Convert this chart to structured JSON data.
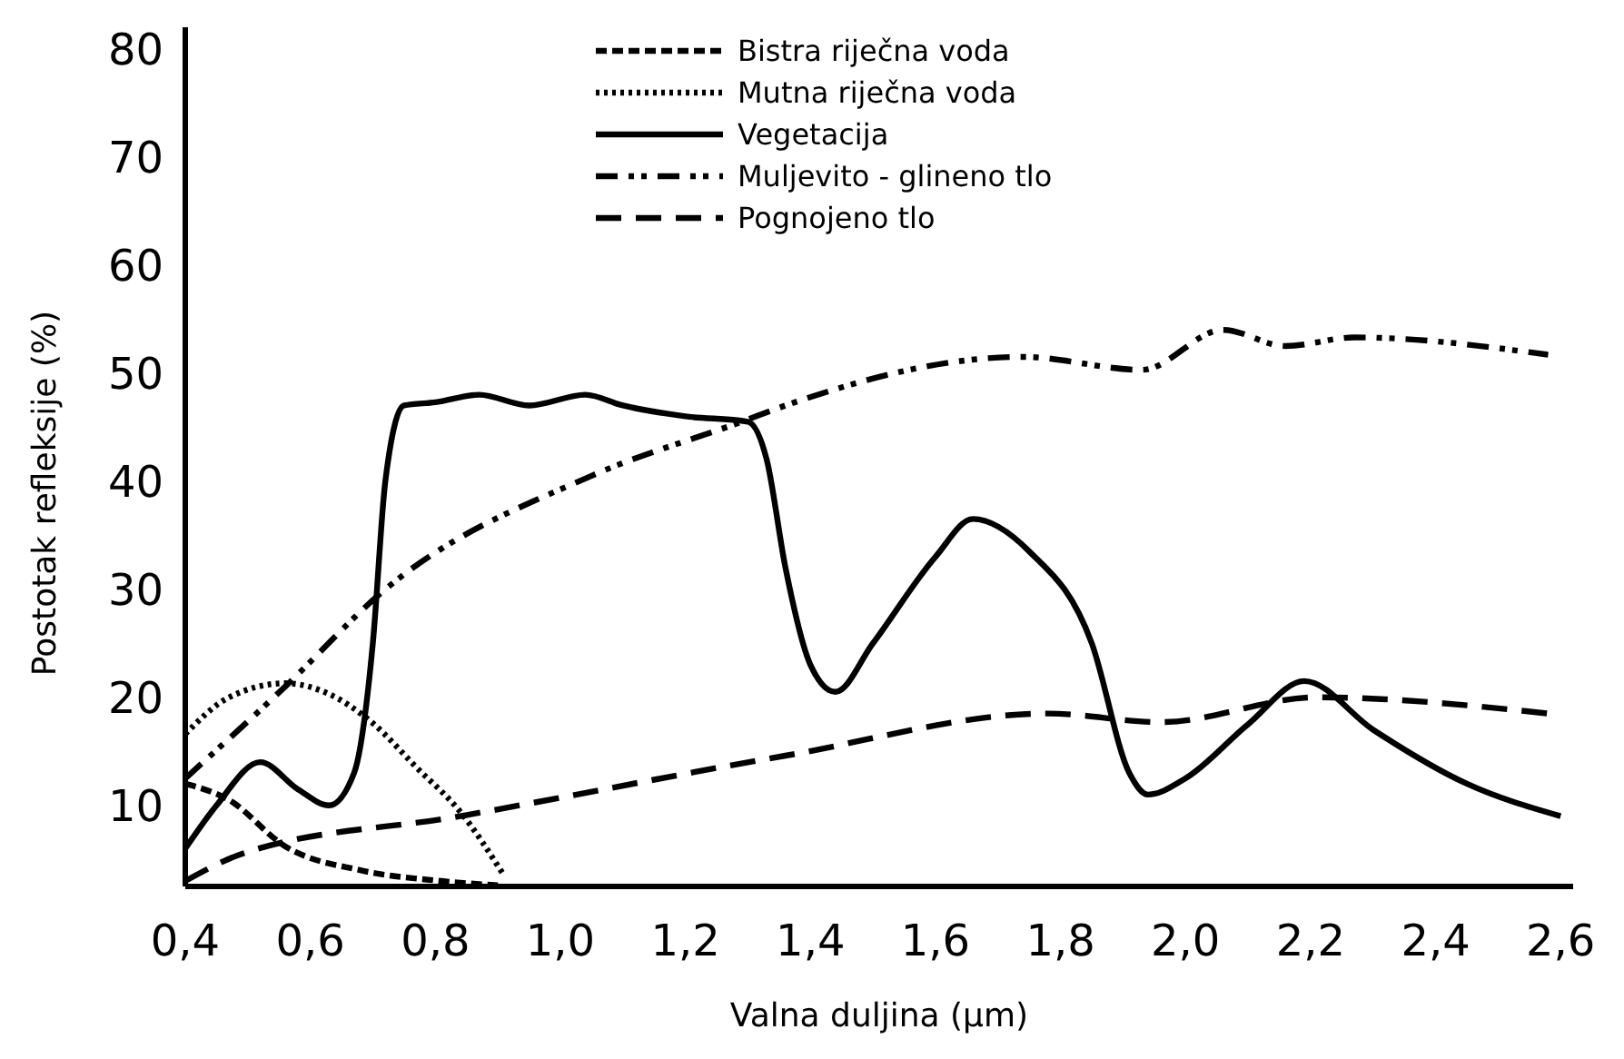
{
  "chart_data": {
    "type": "line",
    "xlabel": "Valna duljina (µm)",
    "ylabel": "Postotak refleksije (%)",
    "xlim": [
      0.4,
      2.62
    ],
    "ylim": [
      2.5,
      82
    ],
    "xticks": [
      {
        "value": 0.4,
        "label": "0,4"
      },
      {
        "value": 0.6,
        "label": "0,6"
      },
      {
        "value": 0.8,
        "label": "0,8"
      },
      {
        "value": 1.0,
        "label": "1,0"
      },
      {
        "value": 1.2,
        "label": "1,2"
      },
      {
        "value": 1.4,
        "label": "1,4"
      },
      {
        "value": 1.6,
        "label": "1,6"
      },
      {
        "value": 1.8,
        "label": "1,8"
      },
      {
        "value": 2.0,
        "label": "2,0"
      },
      {
        "value": 2.2,
        "label": "2,2"
      },
      {
        "value": 2.4,
        "label": "2,4"
      },
      {
        "value": 2.6,
        "label": "2,6"
      }
    ],
    "yticks": [
      10,
      20,
      30,
      40,
      50,
      60,
      70,
      80
    ],
    "grid": false,
    "legend": "top",
    "marker": "none",
    "series": [
      {
        "name": "Bistra riječna voda",
        "color": "#000000",
        "line_style": "dashed",
        "x": [
          0.4,
          0.47,
          0.56,
          0.68,
          0.81,
          0.9
        ],
        "values": [
          12,
          10.5,
          6.2,
          4,
          3,
          2.6
        ]
      },
      {
        "name": "Mutna riječna voda",
        "color": "#000000",
        "line_style": "dotted",
        "x": [
          0.4,
          0.47,
          0.56,
          0.63,
          0.7,
          0.77,
          0.84,
          0.91
        ],
        "values": [
          16.6,
          20,
          21.3,
          20.3,
          17.6,
          13.5,
          9.4,
          3.5
        ]
      },
      {
        "name": "Vegetacija",
        "color": "#000000",
        "line_style": "solid",
        "x": [
          0.4,
          0.45,
          0.52,
          0.58,
          0.63,
          0.67,
          0.7,
          0.72,
          0.75,
          0.8,
          0.87,
          0.95,
          1.04,
          1.1,
          1.2,
          1.3,
          1.33,
          1.36,
          1.4,
          1.44,
          1.5,
          1.6,
          1.66,
          1.75,
          1.85,
          1.91,
          1.94,
          2.0,
          2.1,
          2.19,
          2.3,
          2.45,
          2.6
        ],
        "values": [
          6,
          10,
          14,
          11.5,
          10,
          13,
          25,
          40,
          47,
          47.3,
          48,
          47,
          48,
          47,
          46,
          45.5,
          42,
          32,
          23,
          20.5,
          25,
          33,
          36.5,
          33.5,
          25,
          13,
          11,
          12.5,
          17.5,
          21.5,
          17,
          12,
          9
        ]
      },
      {
        "name": "Muljevito - glineno tlo",
        "color": "#000000",
        "line_style": "dashdotdot",
        "x": [
          0.4,
          0.56,
          0.72,
          1.05,
          1.29,
          1.36,
          1.74,
          1.93,
          2.06,
          2.16,
          2.27,
          2.58
        ],
        "values": [
          12.5,
          21,
          30,
          40.5,
          45.5,
          47,
          51.5,
          50.3,
          54,
          52.5,
          53.3,
          51.7
        ]
      },
      {
        "name": "Pognojeno tlo",
        "color": "#000000",
        "line_style": "longdashed",
        "x": [
          0.4,
          0.49,
          0.84,
          1.36,
          1.78,
          1.96,
          2.21,
          2.58
        ],
        "values": [
          3,
          5.5,
          9,
          14.6,
          18.5,
          17.7,
          20,
          18.5
        ]
      }
    ]
  }
}
